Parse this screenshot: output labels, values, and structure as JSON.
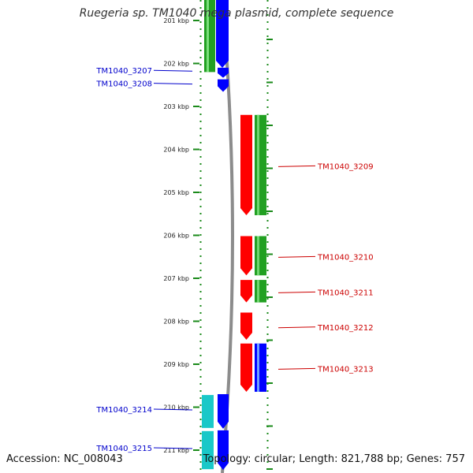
{
  "title": "Ruegeria sp. TM1040 mega plasmid, complete sequence",
  "footer": {
    "accession_label": "Accession:",
    "accession": "NC_008043",
    "topology_label": "Topology:",
    "topology": "circular",
    "length_label": "Length:",
    "length": "821,788 bp",
    "genes_label": "Genes:",
    "genes": "757"
  },
  "ruler": {
    "unit": "kbp",
    "ticks": [
      201,
      202,
      203,
      204,
      205,
      206,
      207,
      208,
      209,
      210,
      211
    ]
  },
  "colors": {
    "forward_gene": "#0000ff",
    "reverse_gene": "#ff0000",
    "cog_green": "#22a022",
    "cog_cyan": "#19c8c8",
    "backbone": "#8c8c8c",
    "dotted_track": "#1a8a1a",
    "label_left": "#0000cc",
    "label_right": "#cc0000"
  },
  "genes_left": [
    {
      "id": "TM1040_3207",
      "strand": "+",
      "start_kbp": 202.08,
      "end_kbp": 202.35
    },
    {
      "id": "TM1040_3208",
      "strand": "+",
      "start_kbp": 202.35,
      "end_kbp": 202.68
    },
    {
      "id": "TM1040_3214",
      "strand": "+",
      "start_kbp": 209.68,
      "end_kbp": 210.52
    },
    {
      "id": "TM1040_3215",
      "strand": "+",
      "start_kbp": 210.52,
      "end_kbp": 211.48
    }
  ],
  "genes_right": [
    {
      "id": "TM1040_3209",
      "strand": "-",
      "start_kbp": 203.18,
      "end_kbp": 205.55
    },
    {
      "id": "TM1040_3210",
      "strand": "-",
      "start_kbp": 206.0,
      "end_kbp": 206.95
    },
    {
      "id": "TM1040_3211",
      "strand": "-",
      "start_kbp": 207.02,
      "end_kbp": 207.58
    },
    {
      "id": "TM1040_3212",
      "strand": "-",
      "start_kbp": 207.78,
      "end_kbp": 208.45
    },
    {
      "id": "TM1040_3213",
      "strand": "-",
      "start_kbp": 208.5,
      "end_kbp": 209.66
    }
  ]
}
